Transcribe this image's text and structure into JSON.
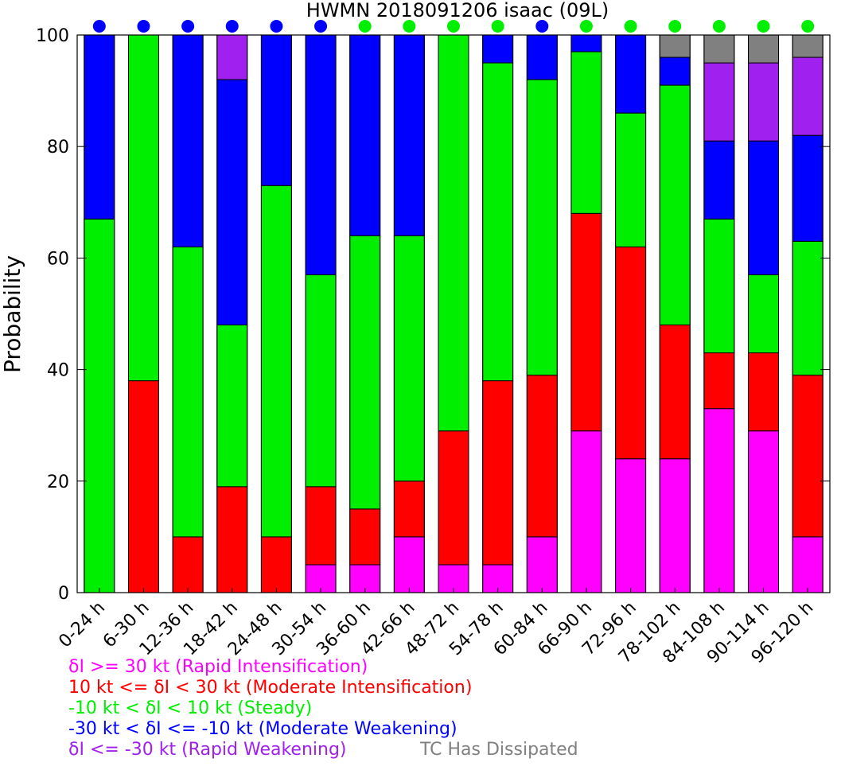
{
  "chart_data": {
    "type": "bar",
    "stacked": true,
    "title": "HWMN 2018091206 isaac (09L)",
    "ylabel": "Probability",
    "xlabel": "",
    "ylim": [
      0,
      100
    ],
    "yticks": [
      "0",
      "20",
      "40",
      "60",
      "80",
      "100"
    ],
    "categories": [
      "0-24 h",
      "6-30 h",
      "12-36 h",
      "18-42 h",
      "24-48 h",
      "30-54 h",
      "36-60 h",
      "42-66 h",
      "48-72 h",
      "54-78 h",
      "60-84 h",
      "66-90 h",
      "72-96 h",
      "78-102 h",
      "84-108 h",
      "90-114 h",
      "96-120 h"
    ],
    "series": [
      {
        "name": "δI >= 30 kt (Rapid Intensification)",
        "color": "#ff00ff",
        "values": [
          0,
          0,
          0,
          0,
          0,
          5,
          5,
          10,
          5,
          5,
          10,
          29,
          24,
          24,
          33,
          29,
          10
        ]
      },
      {
        "name": "10 kt <= δI < 30 kt (Moderate Intensification)",
        "color": "#ff0000",
        "values": [
          0,
          38,
          10,
          19,
          10,
          14,
          10,
          10,
          24,
          33,
          29,
          39,
          38,
          24,
          10,
          14,
          29
        ]
      },
      {
        "name": "-10 kt < δI < 10 kt (Steady)",
        "color": "#00ee00",
        "values": [
          67,
          62,
          52,
          29,
          63,
          38,
          49,
          44,
          71,
          57,
          53,
          29,
          24,
          43,
          24,
          14,
          24
        ]
      },
      {
        "name": "-30 kt < δI <= -10 kt (Moderate Weakening)",
        "color": "#0000ff",
        "values": [
          33,
          0,
          38,
          44,
          27,
          43,
          36,
          36,
          0,
          5,
          8,
          3,
          14,
          5,
          14,
          24,
          19
        ]
      },
      {
        "name": "δI <= -30 kt (Rapid Weakening)",
        "color": "#a020f0",
        "values": [
          0,
          0,
          0,
          8,
          0,
          0,
          0,
          0,
          0,
          0,
          0,
          0,
          0,
          0,
          14,
          14,
          14
        ]
      },
      {
        "name": "TC Has Dissipated",
        "color": "#808080",
        "values": [
          0,
          0,
          0,
          0,
          0,
          0,
          0,
          0,
          0,
          0,
          0,
          0,
          0,
          4,
          5,
          5,
          4
        ]
      }
    ],
    "dot_colors": [
      "#0000ff",
      "#0000ff",
      "#0000ff",
      "#0000ff",
      "#0000ff",
      "#0000ff",
      "#00ee00",
      "#00ee00",
      "#00ee00",
      "#00ee00",
      "#0000ff",
      "#00ee00",
      "#00ee00",
      "#00ee00",
      "#00ee00",
      "#00ee00",
      "#00ee00"
    ]
  }
}
